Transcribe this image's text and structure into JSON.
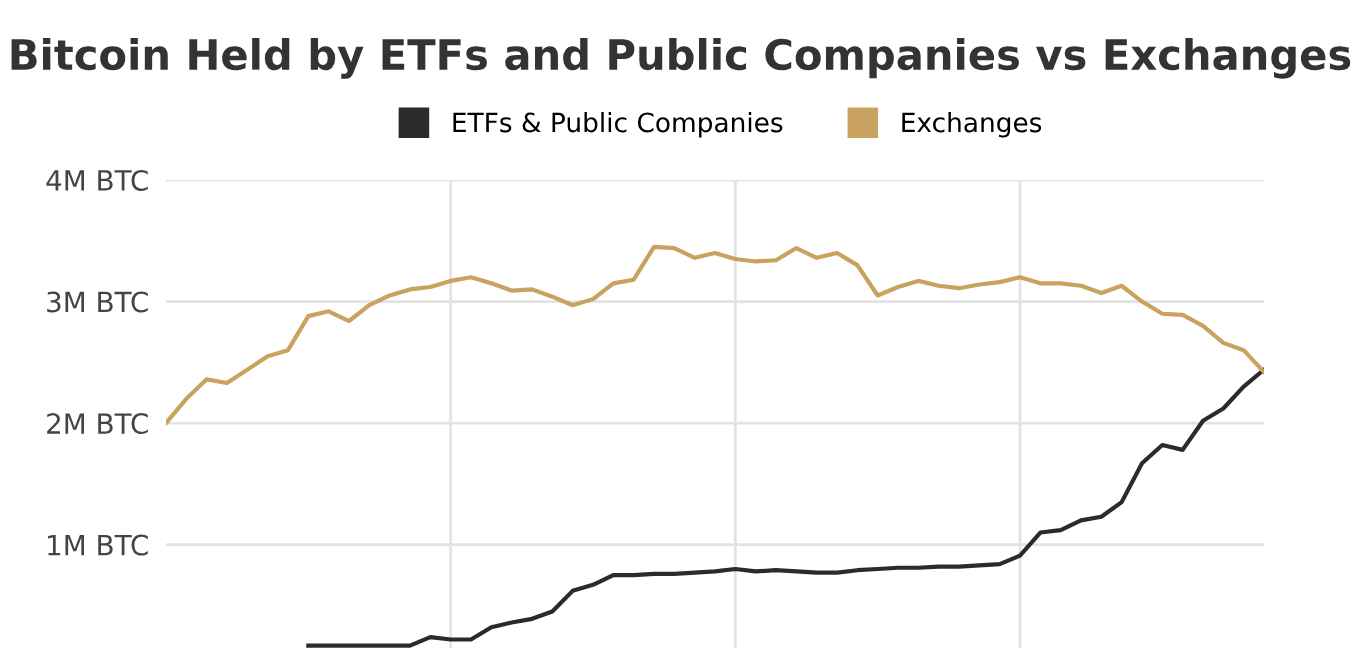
{
  "chart_data": {
    "type": "line",
    "title": "Bitcoin Held by ETFs and Public Companies vs Exchanges",
    "categories": [
      null,
      null,
      null,
      null,
      null,
      null,
      null,
      null,
      null,
      null,
      null,
      null,
      null,
      null,
      null,
      null,
      null,
      null,
      null,
      null,
      null,
      null,
      null,
      null,
      null,
      null,
      null,
      null,
      null,
      null,
      null,
      null,
      null,
      null,
      null,
      null,
      null,
      null,
      null,
      null,
      null,
      null,
      null,
      null,
      null,
      null,
      null,
      null,
      null,
      null,
      null,
      null,
      null,
      null,
      null
    ],
    "series": [
      {
        "name": "ETFs & Public Companies",
        "color": "#2b2b2b",
        "values": [
          null,
          null,
          null,
          null,
          null,
          null,
          null,
          0.17,
          0.17,
          0.17,
          0.17,
          0.17,
          0.17,
          0.24,
          0.22,
          0.22,
          0.32,
          0.36,
          0.39,
          0.45,
          0.62,
          0.67,
          0.75,
          0.75,
          0.76,
          0.76,
          0.77,
          0.78,
          0.8,
          0.78,
          0.79,
          0.78,
          0.77,
          0.77,
          0.79,
          0.8,
          0.81,
          0.81,
          0.82,
          0.82,
          0.83,
          0.84,
          0.91,
          1.1,
          1.12,
          1.2,
          1.23,
          1.35,
          1.67,
          1.82,
          1.78,
          2.02,
          2.12,
          2.3,
          2.44
        ]
      },
      {
        "name": "Exchanges",
        "color": "#c9a25f",
        "values": [
          2.0,
          2.2,
          2.36,
          2.33,
          2.44,
          2.55,
          2.6,
          2.88,
          2.92,
          2.84,
          2.97,
          3.05,
          3.1,
          3.12,
          3.17,
          3.2,
          3.15,
          3.09,
          3.1,
          3.04,
          2.97,
          3.02,
          3.15,
          3.18,
          3.45,
          3.44,
          3.36,
          3.4,
          3.35,
          3.33,
          3.34,
          3.44,
          3.36,
          3.4,
          3.3,
          3.05,
          3.12,
          3.17,
          3.13,
          3.11,
          3.14,
          3.16,
          3.2,
          3.15,
          3.15,
          3.13,
          3.07,
          3.13,
          3.0,
          2.9,
          2.89,
          2.8,
          2.66,
          2.6,
          2.42
        ]
      }
    ],
    "ylim": [
      0.15,
      4
    ],
    "yticks": [
      {
        "value": 1,
        "label": "1M BTC"
      },
      {
        "value": 2,
        "label": "2M BTC"
      },
      {
        "value": 3,
        "label": "3M BTC"
      },
      {
        "value": 4,
        "label": "4M BTC"
      }
    ],
    "grid": true,
    "legend": "top",
    "marker": "none",
    "line_style": "solid"
  }
}
